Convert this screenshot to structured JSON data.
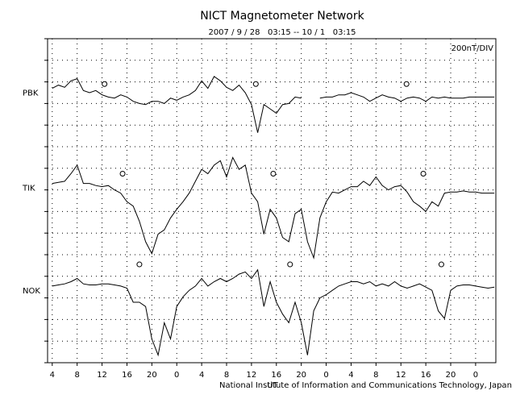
{
  "chart_data": {
    "type": "line",
    "title": "NICT Magnetometer Network",
    "subtitle": "2007 / 9 / 28   03:15 -- 10 / 1   03:15",
    "scale_label": "200nT/DIV",
    "xlabel": "UT",
    "credit": "National Institute of Information and Communications Technology, Japan",
    "grid": true,
    "xlim": [
      3.25,
      75.25
    ],
    "xticks": [
      {
        "value": 4,
        "label": "4"
      },
      {
        "value": 8,
        "label": "8"
      },
      {
        "value": 12,
        "label": "12"
      },
      {
        "value": 16,
        "label": "16"
      },
      {
        "value": 20,
        "label": "20"
      },
      {
        "value": 24,
        "label": "0"
      },
      {
        "value": 28,
        "label": "4"
      },
      {
        "value": 32,
        "label": "8"
      },
      {
        "value": 36,
        "label": "12"
      },
      {
        "value": 40,
        "label": "16"
      },
      {
        "value": 44,
        "label": "20"
      },
      {
        "value": 48,
        "label": "0"
      },
      {
        "value": 52,
        "label": "4"
      },
      {
        "value": 56,
        "label": "8"
      },
      {
        "value": 60,
        "label": "12"
      },
      {
        "value": 64,
        "label": "16"
      },
      {
        "value": 68,
        "label": "20"
      },
      {
        "value": 72,
        "label": "0"
      }
    ],
    "ylim": [
      0,
      3000
    ],
    "yticks": [
      0,
      200,
      400,
      600,
      800,
      1000,
      1200,
      1400,
      1600,
      1800,
      2000,
      2200,
      2400,
      2600,
      2800,
      3000
    ],
    "x": [
      4,
      5,
      6,
      7,
      8,
      9,
      10,
      11,
      12,
      13,
      14,
      15,
      16,
      17,
      18,
      19,
      20,
      21,
      22,
      23,
      24,
      25,
      26,
      27,
      28,
      29,
      30,
      31,
      32,
      33,
      34,
      35,
      36,
      37,
      38,
      39,
      40,
      41,
      42,
      43,
      44,
      45,
      46,
      47,
      48,
      49,
      50,
      51,
      52,
      53,
      54,
      55,
      56,
      57,
      58,
      59,
      60,
      61,
      62,
      63,
      64,
      65,
      66,
      67,
      68,
      69,
      70,
      71,
      72,
      73,
      74,
      75
    ],
    "series": [
      {
        "name": "PBK",
        "color": "#000000",
        "marker_x": [
          12.4,
          36.7,
          60.9
        ],
        "marker_y": 2580,
        "values": [
          2540,
          2570,
          2550,
          2610,
          2630,
          2520,
          2500,
          2520,
          2480,
          2460,
          2450,
          2480,
          2460,
          2420,
          2400,
          2390,
          2420,
          2420,
          2400,
          2450,
          2430,
          2460,
          2480,
          2520,
          2610,
          2540,
          2650,
          2610,
          2550,
          2520,
          2570,
          2500,
          2390,
          2130,
          2390,
          2350,
          2310,
          2390,
          2400,
          2460,
          2450,
          null,
          null,
          2450,
          2460,
          2460,
          2480,
          2480,
          2500,
          2480,
          2460,
          2420,
          2450,
          2480,
          2460,
          2450,
          2420,
          2450,
          2460,
          2450,
          2420,
          2460,
          2450,
          2460,
          2450,
          2450,
          2450,
          2460,
          2460,
          2460,
          2460,
          2460
        ]
      },
      {
        "name": "TIK",
        "color": "#000000",
        "marker_x": [
          15.3,
          39.5,
          63.6
        ],
        "marker_y": 1750,
        "values": [
          1660,
          1670,
          1680,
          1750,
          1830,
          1660,
          1660,
          1640,
          1630,
          1640,
          1600,
          1570,
          1490,
          1450,
          1310,
          1120,
          1010,
          1190,
          1230,
          1340,
          1420,
          1490,
          1570,
          1680,
          1790,
          1750,
          1830,
          1870,
          1720,
          1900,
          1790,
          1830,
          1570,
          1490,
          1190,
          1420,
          1340,
          1160,
          1120,
          1380,
          1420,
          1120,
          970,
          1340,
          1490,
          1580,
          1570,
          1600,
          1630,
          1630,
          1680,
          1640,
          1720,
          1640,
          1600,
          1630,
          1640,
          1580,
          1490,
          1450,
          1400,
          1490,
          1450,
          1570,
          1580,
          1580,
          1590,
          1580,
          1580,
          1570,
          1570,
          1570
        ]
      },
      {
        "name": "NOK",
        "color": "#000000",
        "marker_x": [
          18.0,
          42.2,
          66.5
        ],
        "marker_y": 910,
        "values": [
          710,
          720,
          730,
          750,
          780,
          730,
          720,
          720,
          730,
          730,
          720,
          710,
          690,
          560,
          560,
          520,
          220,
          70,
          370,
          220,
          520,
          610,
          670,
          710,
          780,
          710,
          750,
          780,
          750,
          780,
          820,
          840,
          780,
          860,
          520,
          750,
          560,
          450,
          370,
          560,
          370,
          70,
          480,
          600,
          630,
          670,
          710,
          730,
          750,
          750,
          730,
          750,
          710,
          730,
          710,
          750,
          710,
          690,
          710,
          730,
          700,
          670,
          480,
          410,
          670,
          710,
          720,
          720,
          710,
          700,
          690,
          700
        ]
      }
    ]
  }
}
